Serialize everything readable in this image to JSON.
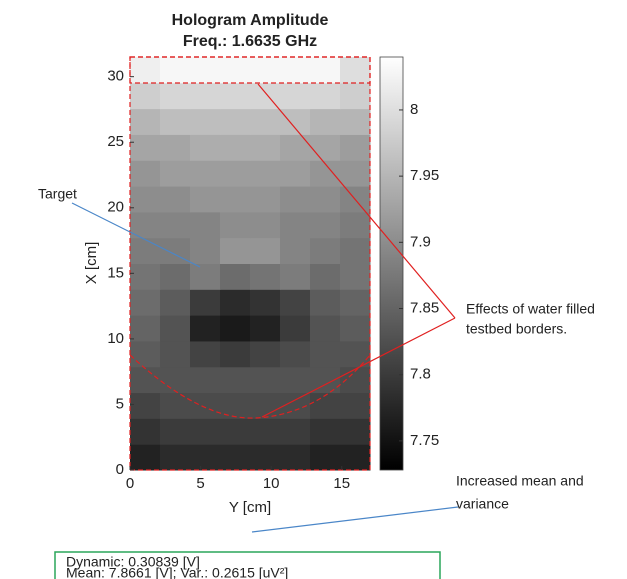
{
  "chart_data": {
    "type": "heatmap",
    "title": [
      "Hologram Amplitude",
      "Freq.: 1.6635 GHz"
    ],
    "x_label": "Y [cm]",
    "y_label": "X [cm]",
    "xlim": [
      0,
      17
    ],
    "ylim": [
      0,
      31.5
    ],
    "xticks": [
      0,
      5,
      10,
      15
    ],
    "yticks": [
      0,
      5,
      10,
      15,
      20,
      25,
      30
    ],
    "clim": [
      7.728,
      8.04
    ],
    "cticks": [
      7.75,
      7.8,
      7.85,
      7.9,
      7.95,
      8
    ],
    "colormap": "gray",
    "z": [
      [
        7.77,
        7.78,
        7.78,
        7.78,
        7.78,
        7.78,
        7.77,
        7.77
      ],
      [
        7.79,
        7.8,
        7.8,
        7.8,
        7.8,
        7.8,
        7.79,
        7.79
      ],
      [
        7.81,
        7.82,
        7.82,
        7.82,
        7.82,
        7.82,
        7.81,
        7.81
      ],
      [
        7.83,
        7.83,
        7.83,
        7.83,
        7.83,
        7.83,
        7.83,
        7.82
      ],
      [
        7.84,
        7.83,
        7.81,
        7.8,
        7.81,
        7.82,
        7.83,
        7.83
      ],
      [
        7.85,
        7.83,
        7.77,
        7.76,
        7.77,
        7.8,
        7.83,
        7.84
      ],
      [
        7.86,
        7.84,
        7.8,
        7.78,
        7.79,
        7.81,
        7.84,
        7.85
      ],
      [
        7.87,
        7.86,
        7.88,
        7.86,
        7.87,
        7.88,
        7.86,
        7.87
      ],
      [
        7.88,
        7.88,
        7.89,
        7.91,
        7.91,
        7.89,
        7.88,
        7.87
      ],
      [
        7.89,
        7.89,
        7.89,
        7.9,
        7.9,
        7.89,
        7.89,
        7.88
      ],
      [
        7.9,
        7.9,
        7.91,
        7.91,
        7.91,
        7.9,
        7.9,
        7.89
      ],
      [
        7.91,
        7.92,
        7.92,
        7.92,
        7.92,
        7.92,
        7.91,
        7.91
      ],
      [
        7.93,
        7.93,
        7.94,
        7.94,
        7.94,
        7.93,
        7.93,
        7.92
      ],
      [
        7.95,
        7.96,
        7.96,
        7.96,
        7.96,
        7.96,
        7.95,
        7.95
      ],
      [
        7.98,
        7.99,
        7.99,
        7.99,
        7.99,
        7.99,
        7.99,
        7.98
      ],
      [
        8.02,
        8.03,
        8.03,
        8.03,
        8.03,
        8.03,
        8.03,
        8.0
      ]
    ],
    "annotations": [
      "Target",
      "Effects of water filled",
      "testbed borders.",
      "Increased mean and",
      "variance"
    ],
    "stats_box": [
      "Dynamic: 0.30839 [V]",
      "Mean: 7.8661 [V]; Var.: 0.2615 [uV²]"
    ]
  }
}
